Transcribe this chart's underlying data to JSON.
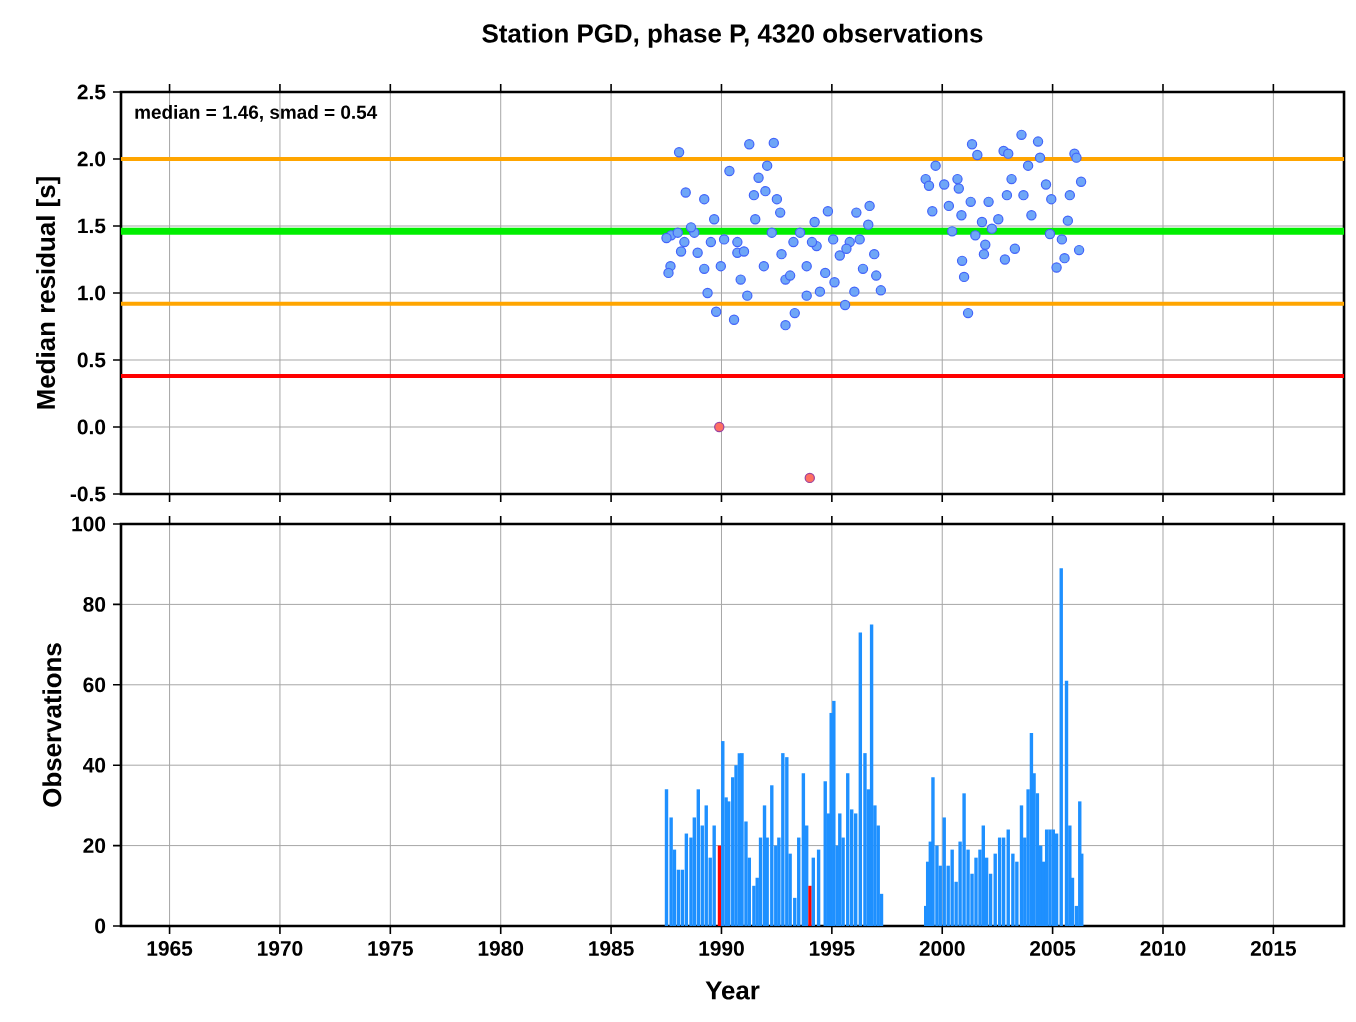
{
  "chart_data": [
    {
      "type": "scatter",
      "title": "Station PGD, phase P, 4320 observations",
      "ylabel": "Median residual [s]",
      "xlim": [
        1962.8,
        2018.2
      ],
      "xticks": [
        1965,
        1970,
        1975,
        1980,
        1985,
        1990,
        1995,
        2000,
        2005,
        2010,
        2015
      ],
      "ylim": [
        -0.5,
        2.5
      ],
      "yticks": [
        {
          "value": -0.5,
          "label": "-0.5"
        },
        {
          "value": 0,
          "label": "0.0"
        },
        {
          "value": 0.5,
          "label": "0.5"
        },
        {
          "value": 1,
          "label": "1.0"
        },
        {
          "value": 1.5,
          "label": "1.5"
        },
        {
          "value": 2,
          "label": "2.0"
        },
        {
          "value": 2.5,
          "label": "2.5"
        }
      ],
      "tick_labels": "y",
      "grid": true,
      "marker": "circle",
      "annotations": [
        "median = 1.46, smad = 0.54"
      ],
      "ref_lines": [
        {
          "axis": "y",
          "value": 2.0,
          "color": "#ffa500"
        },
        {
          "axis": "y",
          "value": 1.46,
          "color": "#00ee00"
        },
        {
          "axis": "y",
          "value": 0.92,
          "color": "#ffa500"
        },
        {
          "axis": "y",
          "value": 0.38,
          "color": "#ff0000"
        }
      ],
      "series": [
        {
          "color": "#6ea6f7",
          "x": [
            1988.08,
            1988.38,
            1989.22,
            1987.72,
            1987.51,
            1988.02,
            1988.77,
            1989.67,
            1988.32,
            1988.92,
            1987.69,
            1987.6,
            1989.22,
            1989.37,
            1989.76,
            1990.12,
            1990.57,
            1990.72,
            1990.87,
            1991.17,
            1990.36,
            1991.26,
            1992.37,
            1992.07,
            1991.68,
            1991.47,
            1991.99,
            1992.51,
            1992.66,
            1991.53,
            1992.28,
            1991.92,
            1992.72,
            1992.9,
            1992.9,
            1993.32,
            1993.11,
            1993.86,
            1993.56,
            1994.22,
            1994.82,
            1994.31,
            1994.7,
            1994.46,
            1995.12,
            1995.6,
            1995.36,
            1995.81,
            1996.11,
            1996.71,
            1996.65,
            1996.92,
            1997.01,
            1997.22,
            1996.02,
            1996.41,
            1996.26,
            1995.06,
            1989.97,
            1988.17,
            1988.62,
            1989.52,
            1990.72,
            1991.02,
            1993.26,
            1993.86,
            1994.1,
            1995.66,
            1999.25,
            1999.4,
            1999.7,
            1999.55,
            2000.09,
            2000.69,
            2000.3,
            2000.75,
            2000.45,
            2000.9,
            2000.99,
            2001.17,
            2001.35,
            2001.59,
            2001.29,
            2001.5,
            2001.89,
            2001.95,
            2002.1,
            2002.54,
            2002.78,
            2002.99,
            2003.14,
            2002.93,
            2003.29,
            2002.84,
            2003.59,
            2004.34,
            2004.43,
            2003.89,
            2003.68,
            2004.04,
            2004.7,
            2004.94,
            2004.88,
            2005.18,
            2005.54,
            2005.42,
            2005.69,
            2005.99,
            2006.08,
            2005.78,
            2006.29,
            2006.2,
            2002.25,
            2001.8,
            2000.87
          ],
          "values": [
            2.05,
            1.75,
            1.7,
            1.43,
            1.41,
            1.45,
            1.45,
            1.55,
            1.38,
            1.3,
            1.2,
            1.15,
            1.18,
            1.0,
            0.86,
            1.4,
            0.8,
            1.38,
            1.1,
            0.98,
            1.91,
            2.11,
            2.12,
            1.95,
            1.86,
            1.73,
            1.76,
            1.7,
            1.6,
            1.55,
            1.45,
            1.2,
            1.29,
            1.1,
            0.76,
            0.85,
            1.13,
            0.98,
            1.45,
            1.53,
            1.61,
            1.35,
            1.15,
            1.01,
            1.08,
            0.91,
            1.28,
            1.38,
            1.6,
            1.65,
            1.51,
            1.29,
            1.13,
            1.02,
            1.01,
            1.18,
            1.4,
            1.4,
            1.2,
            1.31,
            1.49,
            1.38,
            1.3,
            1.31,
            1.38,
            1.2,
            1.38,
            1.33,
            1.85,
            1.8,
            1.95,
            1.61,
            1.81,
            1.85,
            1.65,
            1.78,
            1.46,
            1.24,
            1.12,
            0.85,
            2.11,
            2.03,
            1.68,
            1.43,
            1.29,
            1.36,
            1.68,
            1.55,
            2.06,
            2.04,
            1.85,
            1.73,
            1.33,
            1.25,
            2.18,
            2.13,
            2.01,
            1.95,
            1.73,
            1.58,
            1.81,
            1.7,
            1.44,
            1.19,
            1.26,
            1.4,
            1.54,
            2.04,
            2.01,
            1.73,
            1.83,
            1.32,
            1.48,
            1.53,
            1.58
          ]
        },
        {
          "color": "#ff6f61",
          "x": [
            1989.9,
            1994.0
          ],
          "values": [
            0.0,
            -0.38
          ]
        }
      ]
    },
    {
      "type": "bar",
      "xlabel": "Year",
      "ylabel": "Observations",
      "xlim": [
        1962.8,
        2018.2
      ],
      "xticks": [
        1965,
        1970,
        1975,
        1980,
        1985,
        1990,
        1995,
        2000,
        2005,
        2010,
        2015
      ],
      "ylim": [
        0,
        100
      ],
      "yticks": [
        0,
        20,
        40,
        60,
        80,
        100
      ],
      "grid": true,
      "x": [
        1987.51,
        1987.72,
        1987.87,
        1988.05,
        1988.23,
        1988.41,
        1988.62,
        1988.77,
        1988.95,
        1989.13,
        1989.31,
        1989.49,
        1989.67,
        1989.91,
        1990.06,
        1990.21,
        1990.33,
        1990.51,
        1990.66,
        1990.81,
        1990.93,
        1991.11,
        1991.26,
        1991.47,
        1991.62,
        1991.77,
        1991.95,
        1992.07,
        1992.28,
        1992.46,
        1992.6,
        1992.78,
        1992.96,
        1993.11,
        1993.32,
        1993.5,
        1993.71,
        1993.86,
        1994.01,
        1994.16,
        1994.4,
        1994.7,
        1994.85,
        1994.97,
        1995.09,
        1995.24,
        1995.36,
        1995.51,
        1995.72,
        1995.9,
        1996.08,
        1996.29,
        1996.5,
        1996.65,
        1996.8,
        1996.95,
        1997.1,
        1997.25,
        1999.25,
        1999.34,
        1999.46,
        1999.58,
        1999.76,
        1999.91,
        2000.09,
        2000.27,
        2000.45,
        2000.63,
        2000.81,
        2000.99,
        2001.17,
        2001.35,
        2001.53,
        2001.71,
        2001.86,
        2002.01,
        2002.19,
        2002.4,
        2002.6,
        2002.78,
        2002.99,
        2003.2,
        2003.38,
        2003.59,
        2003.74,
        2003.89,
        2004.04,
        2004.16,
        2004.31,
        2004.46,
        2004.58,
        2004.73,
        2004.88,
        2005.03,
        2005.18,
        2005.39,
        2005.63,
        2005.78,
        2005.9,
        2006.08,
        2006.23,
        2006.32
      ],
      "values": [
        34,
        27,
        19,
        14,
        14,
        23,
        22,
        27,
        34,
        25,
        30,
        17,
        25,
        20,
        46,
        32,
        31,
        37,
        40,
        43,
        43,
        26,
        17,
        10,
        12,
        22,
        30,
        22,
        35,
        20,
        22,
        43,
        42,
        18,
        7,
        22,
        38,
        25,
        10,
        17,
        19,
        36,
        28,
        53,
        56,
        20,
        28,
        22,
        38,
        29,
        28,
        73,
        43,
        34,
        75,
        30,
        25,
        8,
        5,
        16,
        21,
        37,
        20,
        15,
        27,
        15,
        19,
        11,
        21,
        33,
        19,
        13,
        17,
        19,
        25,
        17,
        13,
        18,
        22,
        22,
        24,
        18,
        16,
        30,
        22,
        34,
        48,
        38,
        33,
        20,
        16,
        24,
        24,
        24,
        23,
        89,
        61,
        25,
        12,
        5,
        31,
        18
      ],
      "colors": [
        "#1e90ff",
        "#1e90ff",
        "#1e90ff",
        "#1e90ff",
        "#1e90ff",
        "#1e90ff",
        "#1e90ff",
        "#1e90ff",
        "#1e90ff",
        "#1e90ff",
        "#1e90ff",
        "#1e90ff",
        "#1e90ff",
        "#ff0000",
        "#1e90ff",
        "#1e90ff",
        "#1e90ff",
        "#1e90ff",
        "#1e90ff",
        "#1e90ff",
        "#1e90ff",
        "#1e90ff",
        "#1e90ff",
        "#1e90ff",
        "#1e90ff",
        "#1e90ff",
        "#1e90ff",
        "#1e90ff",
        "#1e90ff",
        "#1e90ff",
        "#1e90ff",
        "#1e90ff",
        "#1e90ff",
        "#1e90ff",
        "#1e90ff",
        "#1e90ff",
        "#1e90ff",
        "#1e90ff",
        "#ff0000",
        "#1e90ff",
        "#1e90ff",
        "#1e90ff",
        "#1e90ff",
        "#1e90ff",
        "#1e90ff",
        "#1e90ff",
        "#1e90ff",
        "#1e90ff",
        "#1e90ff",
        "#1e90ff",
        "#1e90ff",
        "#1e90ff",
        "#1e90ff",
        "#1e90ff",
        "#1e90ff",
        "#1e90ff",
        "#1e90ff",
        "#1e90ff",
        "#1e90ff",
        "#1e90ff",
        "#1e90ff",
        "#1e90ff",
        "#1e90ff",
        "#1e90ff",
        "#1e90ff",
        "#1e90ff",
        "#1e90ff",
        "#1e90ff",
        "#1e90ff",
        "#1e90ff",
        "#1e90ff",
        "#1e90ff",
        "#1e90ff",
        "#1e90ff",
        "#1e90ff",
        "#1e90ff",
        "#1e90ff",
        "#1e90ff",
        "#1e90ff",
        "#1e90ff",
        "#1e90ff",
        "#1e90ff",
        "#1e90ff",
        "#1e90ff",
        "#1e90ff",
        "#1e90ff",
        "#1e90ff",
        "#1e90ff",
        "#1e90ff",
        "#1e90ff",
        "#1e90ff",
        "#1e90ff",
        "#1e90ff",
        "#1e90ff",
        "#1e90ff",
        "#1e90ff",
        "#1e90ff",
        "#1e90ff",
        "#1e90ff",
        "#1e90ff",
        "#1e90ff",
        "#1e90ff"
      ]
    }
  ]
}
